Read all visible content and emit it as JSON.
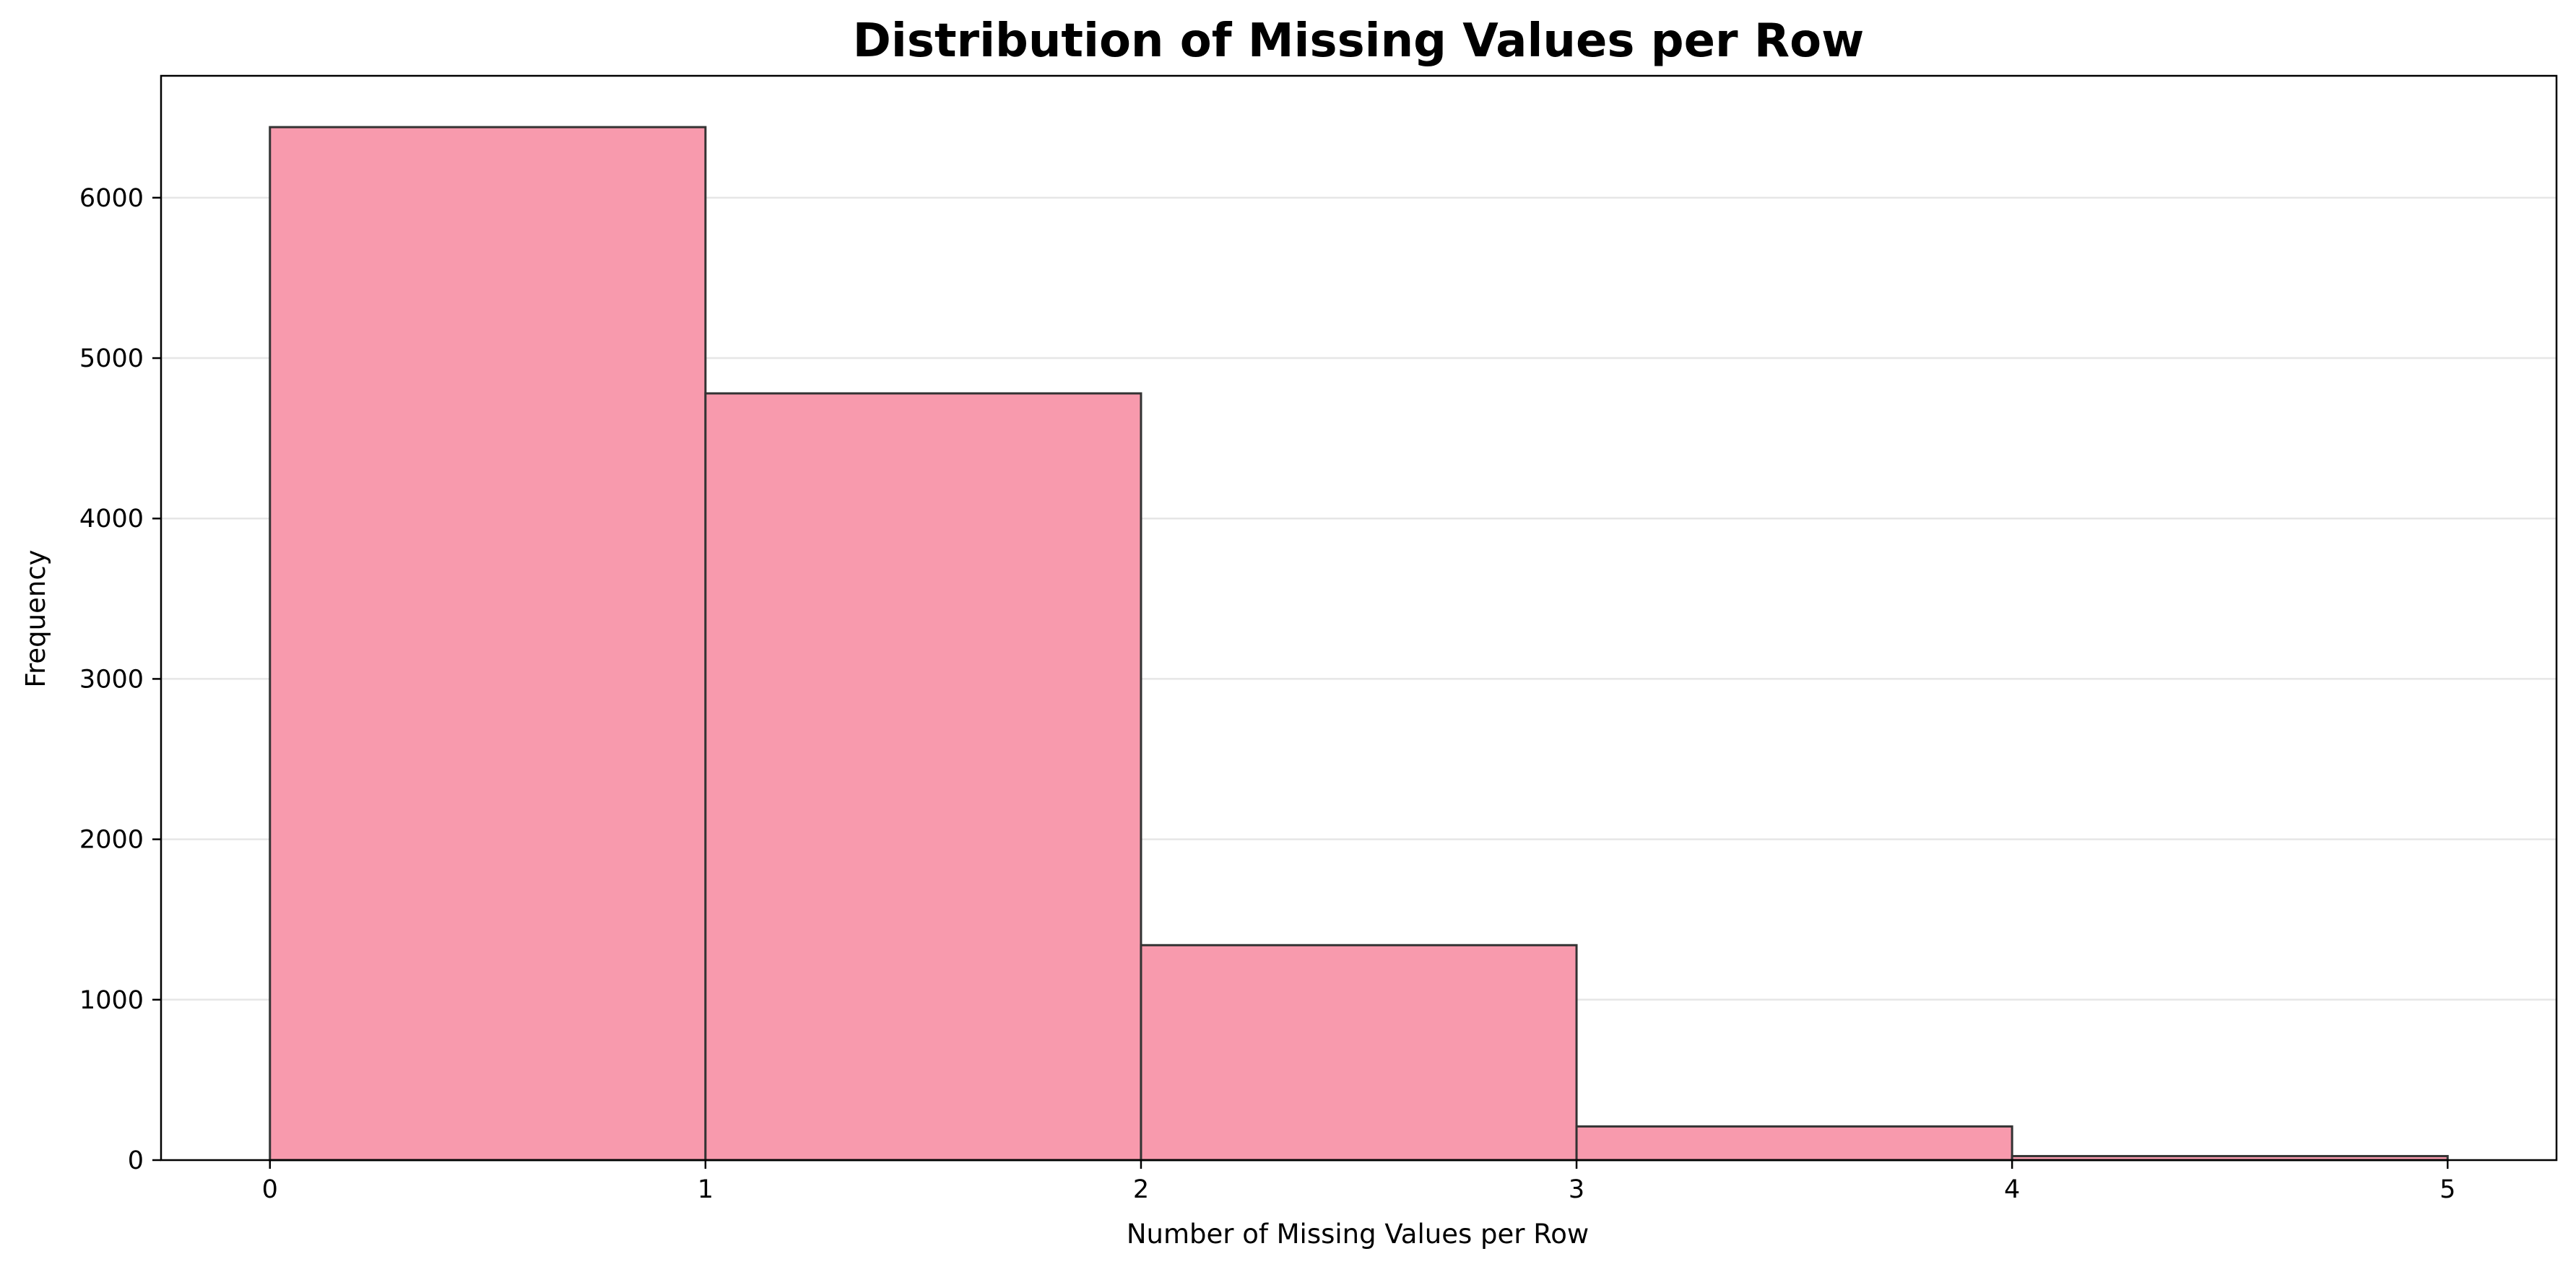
{
  "chart_data": {
    "type": "bar",
    "title": "Distribution of Missing Values per Row",
    "xlabel": "Number of Missing Values per Row",
    "ylabel": "Frequency",
    "bins": [
      {
        "x0": 0,
        "x1": 1,
        "value": 6440
      },
      {
        "x0": 1,
        "x1": 2,
        "value": 4780
      },
      {
        "x0": 2,
        "x1": 3,
        "value": 1340
      },
      {
        "x0": 3,
        "x1": 4,
        "value": 210
      },
      {
        "x0": 4,
        "x1": 5,
        "value": 25
      }
    ],
    "xlim": [
      -0.25,
      5.25
    ],
    "ylim": [
      0,
      6760
    ],
    "xticks": [
      0,
      1,
      2,
      3,
      4,
      5
    ],
    "xtick_labels": [
      "0",
      "1",
      "2",
      "3",
      "4",
      "5"
    ],
    "yticks": [
      0,
      1000,
      2000,
      3000,
      4000,
      5000,
      6000
    ],
    "ytick_labels": [
      "0",
      "1000",
      "2000",
      "3000",
      "4000",
      "5000",
      "6000"
    ],
    "grid": {
      "x": false,
      "y": true
    },
    "colors": {
      "bar_fill": "#f89aad",
      "bar_edge": "#333333",
      "grid": "#e6e6e6",
      "axis": "#000000"
    }
  }
}
